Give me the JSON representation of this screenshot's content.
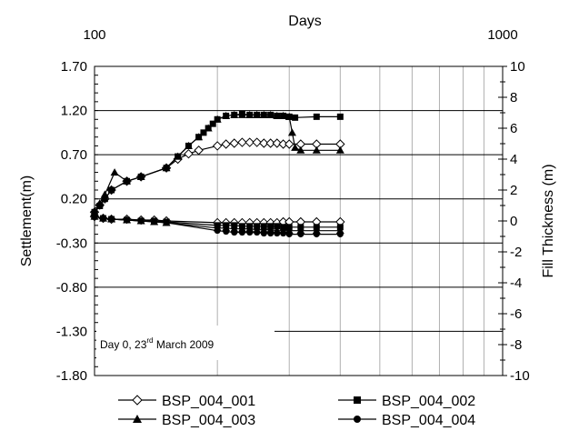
{
  "chart_data": {
    "type": "line",
    "title": "",
    "x_top_label": "Days",
    "x_scale": "log",
    "xlim": [
      100,
      1000
    ],
    "x_ticks": [
      "100",
      "1000"
    ],
    "ylabel_left": "Settlement(m)",
    "ylim_left": [
      -1.8,
      1.7
    ],
    "y_ticks_left": [
      "1.70",
      "1.20",
      "0.70",
      "0.20",
      "-0.30",
      "-0.80",
      "-1.30",
      "-1.80"
    ],
    "ylabel_right": "Fill Thickness (m)",
    "ylim_right": [
      -10,
      10
    ],
    "y_ticks_right": [
      "10",
      "8",
      "6",
      "4",
      "2",
      "0",
      "-2",
      "-4",
      "-6",
      "-8",
      "-10"
    ],
    "grid": true,
    "legend_position": "bottom",
    "annotation": {
      "prefix": "Day 0, 23",
      "sup": "rd",
      "suffix": " March 2009"
    },
    "fill_series": [
      {
        "name": "BSP_004_001",
        "marker": "diamond",
        "x": [
          100,
          103,
          106,
          110,
          120,
          130,
          150,
          160,
          170,
          180,
          200,
          210,
          220,
          230,
          240,
          250,
          260,
          270,
          280,
          290,
          300,
          320,
          350,
          400
        ],
        "y": [
          0.05,
          0.13,
          0.2,
          0.3,
          0.4,
          0.45,
          0.55,
          0.65,
          0.71,
          0.75,
          0.8,
          0.82,
          0.83,
          0.84,
          0.84,
          0.84,
          0.83,
          0.83,
          0.83,
          0.82,
          0.82,
          0.82,
          0.82,
          0.82
        ]
      },
      {
        "name": "BSP_004_002",
        "marker": "square",
        "x": [
          100,
          103,
          106,
          110,
          120,
          130,
          150,
          160,
          170,
          180,
          185,
          190,
          195,
          200,
          210,
          220,
          230,
          240,
          250,
          260,
          270,
          280,
          290,
          300,
          310,
          350,
          400
        ],
        "y": [
          0.05,
          0.12,
          0.2,
          0.3,
          0.4,
          0.45,
          0.55,
          0.68,
          0.8,
          0.9,
          0.95,
          1.0,
          1.05,
          1.1,
          1.14,
          1.15,
          1.16,
          1.15,
          1.15,
          1.15,
          1.15,
          1.14,
          1.14,
          1.13,
          1.12,
          1.13,
          1.13
        ]
      },
      {
        "name": "BSP_004_003",
        "marker": "triangle",
        "x": [
          100,
          103,
          106,
          112,
          120,
          130,
          150,
          160,
          170,
          180,
          190,
          200,
          210,
          220,
          230,
          240,
          250,
          260,
          270,
          280,
          290,
          300,
          305,
          310,
          320,
          350,
          400
        ],
        "y": [
          0.05,
          0.15,
          0.25,
          0.5,
          0.4,
          0.45,
          0.55,
          0.68,
          0.8,
          0.9,
          1.0,
          1.1,
          1.14,
          1.15,
          1.15,
          1.15,
          1.15,
          1.15,
          1.15,
          1.14,
          1.14,
          1.13,
          0.95,
          0.78,
          0.75,
          0.75,
          0.75
        ]
      }
    ],
    "settlement_series": [
      {
        "name": "BSP_004_001",
        "marker": "diamond",
        "x": [
          100,
          105,
          110,
          120,
          130,
          140,
          150,
          200,
          210,
          220,
          230,
          240,
          250,
          260,
          270,
          280,
          290,
          300,
          320,
          350,
          400
        ],
        "y": [
          0.0,
          -0.02,
          -0.03,
          -0.03,
          -0.04,
          -0.04,
          -0.05,
          -0.07,
          -0.07,
          -0.07,
          -0.07,
          -0.07,
          -0.07,
          -0.07,
          -0.07,
          -0.07,
          -0.06,
          -0.06,
          -0.06,
          -0.06,
          -0.06
        ]
      },
      {
        "name": "BSP_004_002",
        "marker": "square",
        "x": [
          100,
          105,
          110,
          120,
          130,
          140,
          150,
          200,
          210,
          220,
          230,
          240,
          250,
          260,
          270,
          280,
          290,
          300,
          320,
          350,
          400
        ],
        "y": [
          0.0,
          -0.02,
          -0.03,
          -0.04,
          -0.05,
          -0.05,
          -0.06,
          -0.1,
          -0.1,
          -0.1,
          -0.11,
          -0.11,
          -0.11,
          -0.11,
          -0.11,
          -0.11,
          -0.12,
          -0.12,
          -0.12,
          -0.12,
          -0.12
        ]
      },
      {
        "name": "BSP_004_003",
        "marker": "triangle",
        "x": [
          100,
          105,
          110,
          120,
          130,
          140,
          150,
          200,
          210,
          220,
          230,
          240,
          250,
          260,
          270,
          280,
          290,
          300,
          320,
          350,
          400
        ],
        "y": [
          0.0,
          -0.02,
          -0.03,
          -0.04,
          -0.05,
          -0.06,
          -0.07,
          -0.13,
          -0.13,
          -0.14,
          -0.14,
          -0.14,
          -0.15,
          -0.15,
          -0.15,
          -0.16,
          -0.16,
          -0.16,
          -0.16,
          -0.16,
          -0.16
        ]
      },
      {
        "name": "BSP_004_004",
        "marker": "circle",
        "x": [
          100,
          105,
          110,
          120,
          130,
          140,
          150,
          200,
          210,
          220,
          230,
          240,
          250,
          260,
          270,
          280,
          290,
          300,
          320,
          350,
          400
        ],
        "y": [
          0.0,
          -0.02,
          -0.03,
          -0.04,
          -0.05,
          -0.06,
          -0.07,
          -0.16,
          -0.17,
          -0.18,
          -0.18,
          -0.18,
          -0.18,
          -0.19,
          -0.19,
          -0.19,
          -0.19,
          -0.2,
          -0.2,
          -0.2,
          -0.2
        ]
      }
    ],
    "legend": [
      {
        "name": "BSP_004_001",
        "marker": "diamond"
      },
      {
        "name": "BSP_004_002",
        "marker": "square"
      },
      {
        "name": "BSP_004_003",
        "marker": "triangle"
      },
      {
        "name": "BSP_004_004",
        "marker": "circle"
      }
    ]
  }
}
